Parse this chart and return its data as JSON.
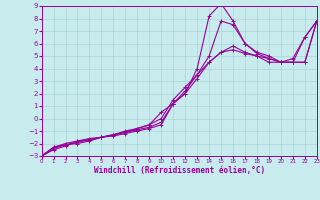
{
  "title": "",
  "xlabel": "Windchill (Refroidissement éolien,°C)",
  "ylabel": "",
  "bg_color": "#c8ecee",
  "line_color": "#990099",
  "grid_color": "#a8d4d8",
  "xlim": [
    0,
    23
  ],
  "ylim": [
    -3,
    9
  ],
  "xticks": [
    0,
    1,
    2,
    3,
    4,
    5,
    6,
    7,
    8,
    9,
    10,
    11,
    12,
    13,
    14,
    15,
    16,
    17,
    18,
    19,
    20,
    21,
    22,
    23
  ],
  "yticks": [
    -3,
    -2,
    -1,
    0,
    1,
    2,
    3,
    4,
    5,
    6,
    7,
    8,
    9
  ],
  "curves": [
    [
      [
        0,
        -3
      ],
      [
        1,
        -2.5
      ],
      [
        2,
        -2.2
      ],
      [
        3,
        -1.8
      ],
      [
        4,
        -1.7
      ],
      [
        5,
        -1.5
      ],
      [
        6,
        -1.4
      ],
      [
        7,
        -1.2
      ],
      [
        8,
        -1.0
      ],
      [
        9,
        -0.8
      ],
      [
        10,
        -0.5
      ],
      [
        11,
        1.2
      ],
      [
        12,
        2.0
      ],
      [
        13,
        4.0
      ],
      [
        14,
        8.2
      ],
      [
        15,
        9.2
      ],
      [
        16,
        7.8
      ],
      [
        17,
        6.0
      ],
      [
        18,
        5.3
      ],
      [
        19,
        5.0
      ],
      [
        20,
        4.5
      ],
      [
        21,
        4.5
      ],
      [
        22,
        4.5
      ],
      [
        23,
        7.8
      ]
    ],
    [
      [
        0,
        -3
      ],
      [
        1,
        -2.3
      ],
      [
        2,
        -2.0
      ],
      [
        3,
        -1.8
      ],
      [
        4,
        -1.6
      ],
      [
        5,
        -1.5
      ],
      [
        6,
        -1.3
      ],
      [
        7,
        -1.1
      ],
      [
        8,
        -0.9
      ],
      [
        9,
        -0.7
      ],
      [
        10,
        -0.3
      ],
      [
        11,
        1.2
      ],
      [
        12,
        2.2
      ],
      [
        13,
        3.5
      ],
      [
        14,
        5.0
      ],
      [
        15,
        7.8
      ],
      [
        16,
        7.5
      ],
      [
        17,
        6.0
      ],
      [
        18,
        5.2
      ],
      [
        19,
        4.8
      ],
      [
        20,
        4.5
      ],
      [
        21,
        4.5
      ],
      [
        22,
        4.5
      ],
      [
        23,
        7.8
      ]
    ],
    [
      [
        0,
        -3
      ],
      [
        1,
        -2.4
      ],
      [
        2,
        -2.1
      ],
      [
        3,
        -1.9
      ],
      [
        4,
        -1.7
      ],
      [
        5,
        -1.5
      ],
      [
        6,
        -1.3
      ],
      [
        7,
        -1.1
      ],
      [
        8,
        -0.8
      ],
      [
        9,
        -0.5
      ],
      [
        10,
        0.0
      ],
      [
        11,
        1.5
      ],
      [
        12,
        2.5
      ],
      [
        13,
        3.5
      ],
      [
        14,
        4.5
      ],
      [
        15,
        5.3
      ],
      [
        16,
        5.5
      ],
      [
        17,
        5.2
      ],
      [
        18,
        5.0
      ],
      [
        19,
        4.8
      ],
      [
        20,
        4.5
      ],
      [
        21,
        4.8
      ],
      [
        22,
        6.5
      ],
      [
        23,
        7.8
      ]
    ],
    [
      [
        0,
        -3
      ],
      [
        1,
        -2.3
      ],
      [
        2,
        -2.1
      ],
      [
        3,
        -2.0
      ],
      [
        4,
        -1.8
      ],
      [
        5,
        -1.5
      ],
      [
        6,
        -1.3
      ],
      [
        7,
        -1.0
      ],
      [
        8,
        -0.8
      ],
      [
        9,
        -0.5
      ],
      [
        10,
        0.5
      ],
      [
        11,
        1.2
      ],
      [
        12,
        2.0
      ],
      [
        13,
        3.2
      ],
      [
        14,
        4.5
      ],
      [
        15,
        5.3
      ],
      [
        16,
        5.8
      ],
      [
        17,
        5.3
      ],
      [
        18,
        5.0
      ],
      [
        19,
        4.5
      ],
      [
        20,
        4.5
      ],
      [
        21,
        4.5
      ],
      [
        22,
        6.5
      ],
      [
        23,
        7.8
      ]
    ]
  ]
}
